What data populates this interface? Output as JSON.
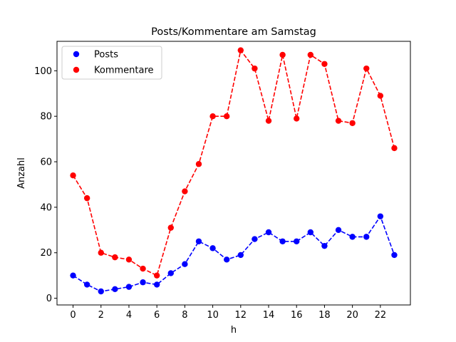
{
  "chart_data": {
    "type": "line",
    "title": "Posts/Kommentare am Samstag",
    "xlabel": "h",
    "ylabel": "Anzahl",
    "x": [
      0,
      1,
      2,
      3,
      4,
      5,
      6,
      7,
      8,
      9,
      10,
      11,
      12,
      13,
      14,
      15,
      16,
      17,
      18,
      19,
      20,
      21,
      22,
      23
    ],
    "xlim": [
      -1.15,
      24.15
    ],
    "ylim": [
      -2.95,
      112.95
    ],
    "xticks": [
      0,
      2,
      4,
      6,
      8,
      10,
      12,
      14,
      16,
      18,
      20,
      22
    ],
    "yticks": [
      0,
      20,
      40,
      60,
      80,
      100
    ],
    "grid": false,
    "legend_position": "top-left",
    "series": [
      {
        "name": "Posts",
        "color": "#0000ff",
        "line_style": "dashed",
        "marker": "circle",
        "values": [
          10,
          6,
          3,
          4,
          5,
          7,
          6,
          11,
          15,
          25,
          22,
          17,
          19,
          26,
          29,
          25,
          25,
          29,
          23,
          30,
          27,
          27,
          36,
          19
        ]
      },
      {
        "name": "Kommentare",
        "color": "#ff0000",
        "line_style": "dashed",
        "marker": "circle",
        "values": [
          54,
          44,
          20,
          18,
          17,
          13,
          10,
          31,
          47,
          59,
          80,
          80,
          109,
          101,
          78,
          107,
          79,
          107,
          103,
          78,
          77,
          101,
          89,
          66
        ]
      }
    ]
  }
}
